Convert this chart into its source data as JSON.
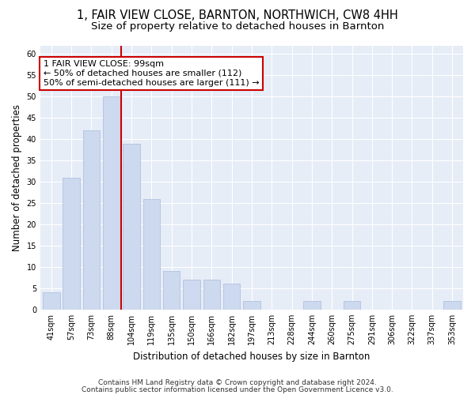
{
  "title_line1": "1, FAIR VIEW CLOSE, BARNTON, NORTHWICH, CW8 4HH",
  "title_line2": "Size of property relative to detached houses in Barnton",
  "xlabel": "Distribution of detached houses by size in Barnton",
  "ylabel": "Number of detached properties",
  "categories": [
    "41sqm",
    "57sqm",
    "73sqm",
    "88sqm",
    "104sqm",
    "119sqm",
    "135sqm",
    "150sqm",
    "166sqm",
    "182sqm",
    "197sqm",
    "213sqm",
    "228sqm",
    "244sqm",
    "260sqm",
    "275sqm",
    "291sqm",
    "306sqm",
    "322sqm",
    "337sqm",
    "353sqm"
  ],
  "values": [
    4,
    31,
    42,
    50,
    39,
    26,
    9,
    7,
    7,
    6,
    2,
    0,
    0,
    2,
    0,
    2,
    0,
    0,
    0,
    0,
    2
  ],
  "bar_color": "#ccd9ee",
  "bar_edge_color": "#aabbdd",
  "vline_color": "#cc0000",
  "annotation_line1": "1 FAIR VIEW CLOSE: 99sqm",
  "annotation_line2": "← 50% of detached houses are smaller (112)",
  "annotation_line3": "50% of semi-detached houses are larger (111) →",
  "annotation_box_color": "white",
  "annotation_box_edge_color": "#cc0000",
  "ylim": [
    0,
    62
  ],
  "yticks": [
    0,
    5,
    10,
    15,
    20,
    25,
    30,
    35,
    40,
    45,
    50,
    55,
    60
  ],
  "background_color": "#e6edf7",
  "footer_line1": "Contains HM Land Registry data © Crown copyright and database right 2024.",
  "footer_line2": "Contains public sector information licensed under the Open Government Licence v3.0.",
  "title_fontsize": 10.5,
  "subtitle_fontsize": 9.5,
  "axis_label_fontsize": 8.5,
  "tick_fontsize": 7,
  "annotation_fontsize": 8,
  "footer_fontsize": 6.5
}
